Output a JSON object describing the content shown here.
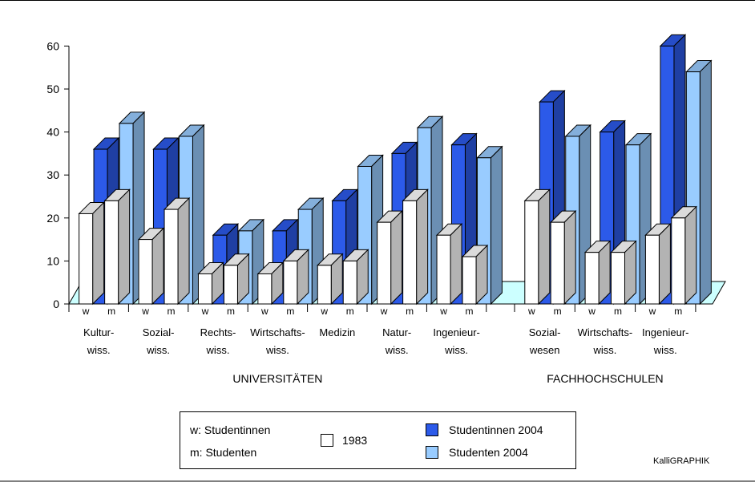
{
  "chart_data": {
    "type": "bar",
    "subtype": "3d-grouped-bar",
    "ylim": [
      0,
      60
    ],
    "yticks": [
      0,
      10,
      20,
      30,
      40,
      50,
      60
    ],
    "grid": false,
    "series": [
      {
        "name": "1983",
        "color": "#ffffff"
      },
      {
        "name": "Studentinnen 2004",
        "color": "#2c5ae9"
      },
      {
        "name": "Studenten 2004",
        "color": "#99ccff"
      }
    ],
    "groups": [
      {
        "section": "UNIVERSITÄTEN",
        "label1": "Kultur-",
        "label2": "wiss.",
        "w": {
          "y1983": 21,
          "y2004": 36
        },
        "m": {
          "y1983": 24,
          "y2004": 42
        }
      },
      {
        "section": "UNIVERSITÄTEN",
        "label1": "Sozial-",
        "label2": "wiss.",
        "w": {
          "y1983": 15,
          "y2004": 36
        },
        "m": {
          "y1983": 22,
          "y2004": 39
        }
      },
      {
        "section": "UNIVERSITÄTEN",
        "label1": "Rechts-",
        "label2": "wiss.",
        "w": {
          "y1983": 7,
          "y2004": 16
        },
        "m": {
          "y1983": 9,
          "y2004": 17
        }
      },
      {
        "section": "UNIVERSITÄTEN",
        "label1": "Wirtschafts-",
        "label2": "wiss.",
        "w": {
          "y1983": 7,
          "y2004": 17
        },
        "m": {
          "y1983": 10,
          "y2004": 22
        }
      },
      {
        "section": "UNIVERSITÄTEN",
        "label1": "Medizin",
        "label2": "",
        "w": {
          "y1983": 9,
          "y2004": 24
        },
        "m": {
          "y1983": 10,
          "y2004": 32
        }
      },
      {
        "section": "UNIVERSITÄTEN",
        "label1": "Natur-",
        "label2": "wiss.",
        "w": {
          "y1983": 19,
          "y2004": 35
        },
        "m": {
          "y1983": 24,
          "y2004": 41
        }
      },
      {
        "section": "UNIVERSITÄTEN",
        "label1": "Ingenieur-",
        "label2": "wiss.",
        "w": {
          "y1983": 16,
          "y2004": 37
        },
        "m": {
          "y1983": 11,
          "y2004": 34
        }
      },
      {
        "section": "FACHHOCHSCHULEN",
        "label1": "Sozial-",
        "label2": "wesen",
        "w": {
          "y1983": 24,
          "y2004": 47
        },
        "m": {
          "y1983": 19,
          "y2004": 39
        }
      },
      {
        "section": "FACHHOCHSCHULEN",
        "label1": "Wirtschafts-",
        "label2": "wiss.",
        "w": {
          "y1983": 12,
          "y2004": 40
        },
        "m": {
          "y1983": 12,
          "y2004": 37
        }
      },
      {
        "section": "FACHHOCHSCHULEN",
        "label1": "Ingenieur-",
        "label2": "wiss.",
        "w": {
          "y1983": 16,
          "y2004": 60
        },
        "m": {
          "y1983": 20,
          "y2004": 54
        }
      }
    ],
    "sub_labels": {
      "w": "w",
      "m": "m"
    },
    "sections": [
      "UNIVERSITÄTEN",
      "FACHHOCHSCHULEN"
    ]
  },
  "legend": {
    "w_label": "w: Studentinnen",
    "m_label": "m: Studenten",
    "item_1983": "1983",
    "item_f2004": "Studentinnen 2004",
    "item_m2004": "Studenten 2004"
  },
  "credit": "KalliGRAPHIK"
}
